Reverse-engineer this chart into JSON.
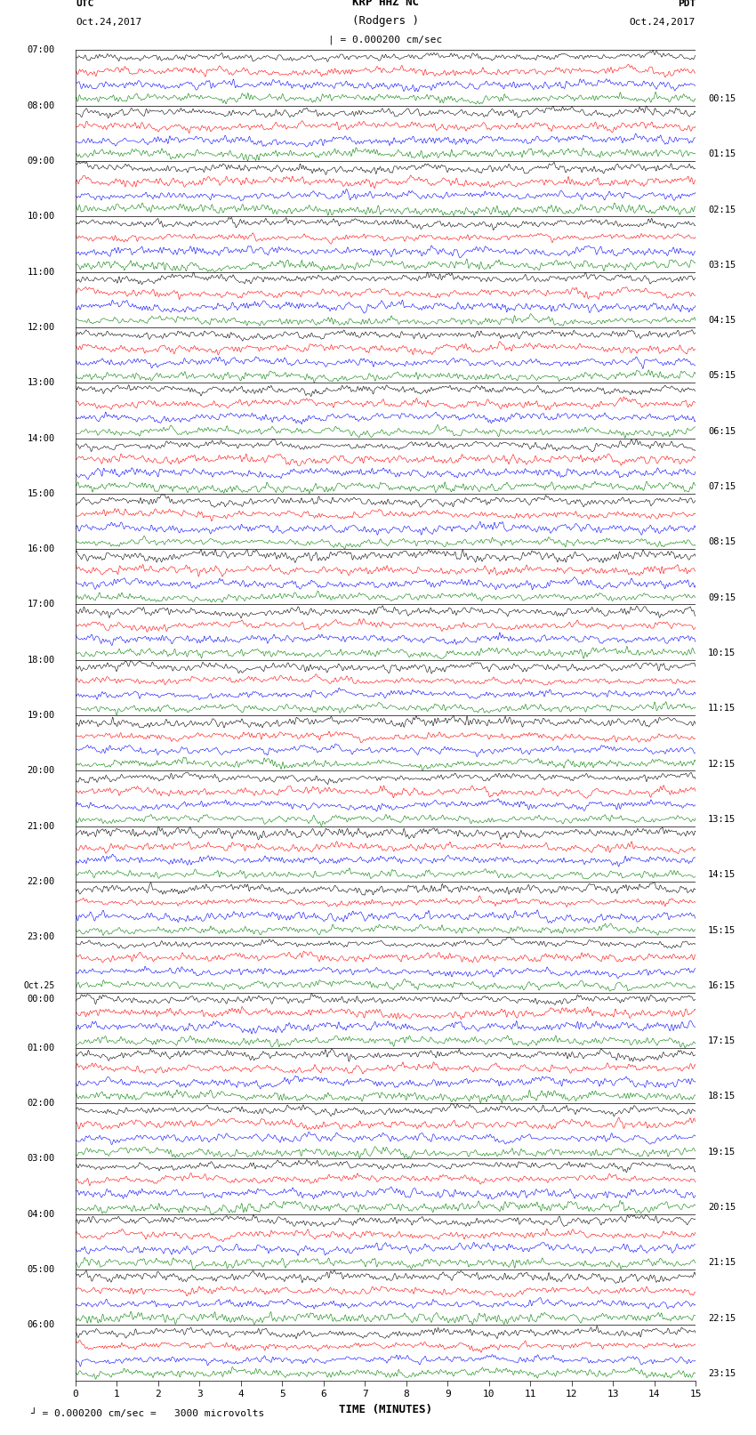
{
  "title_line1": "KRP HHZ NC",
  "title_line2": "(Rodgers )",
  "title_line3": "| = 0.000200 cm/sec",
  "label_left_top": "UTC",
  "label_left_date": "Oct.24,2017",
  "label_right_top": "PDT",
  "label_right_date": "Oct.24,2017",
  "xlabel": "TIME (MINUTES)",
  "bottom_note": "= 0.000200 cm/sec =   3000 microvolts",
  "left_times": [
    "07:00",
    "08:00",
    "09:00",
    "10:00",
    "11:00",
    "12:00",
    "13:00",
    "14:00",
    "15:00",
    "16:00",
    "17:00",
    "18:00",
    "19:00",
    "20:00",
    "21:00",
    "22:00",
    "23:00",
    "Oct.25\n00:00",
    "01:00",
    "02:00",
    "03:00",
    "04:00",
    "05:00",
    "06:00"
  ],
  "right_times": [
    "00:15",
    "01:15",
    "02:15",
    "03:15",
    "04:15",
    "05:15",
    "06:15",
    "07:15",
    "08:15",
    "09:15",
    "10:15",
    "11:15",
    "12:15",
    "13:15",
    "14:15",
    "15:15",
    "16:15",
    "17:15",
    "18:15",
    "19:15",
    "20:15",
    "21:15",
    "22:15",
    "23:15"
  ],
  "trace_colors": [
    "black",
    "red",
    "blue",
    "green"
  ],
  "n_hours": 24,
  "traces_per_hour": 4,
  "time_minutes": 15,
  "bg_color": "white",
  "plot_bg": "white",
  "fig_width": 8.5,
  "fig_height": 16.13,
  "amplitude": 0.48,
  "seed": 42,
  "n_points": 5000,
  "linewidth": 0.4
}
